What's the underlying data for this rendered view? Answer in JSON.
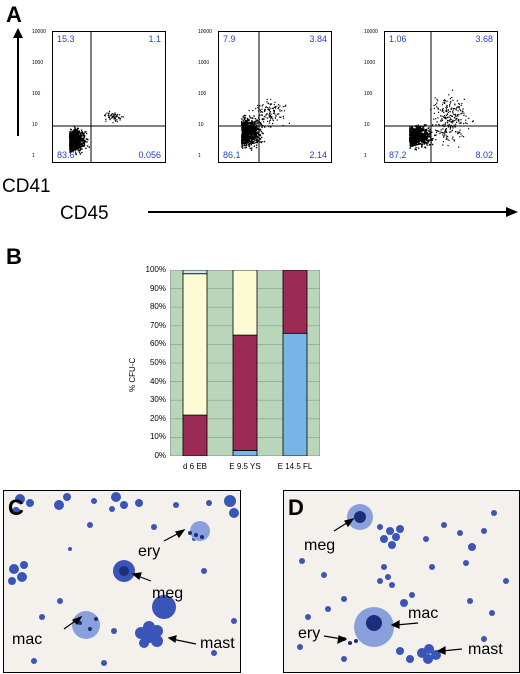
{
  "panels": {
    "a_letter": "A",
    "b_letter": "B",
    "c_letter": "C",
    "d_letter": "D"
  },
  "flow": {
    "y_axis_label": "CD41",
    "x_axis_label": "CD45",
    "y_ticks": [
      "10000",
      "1000",
      "100",
      "10",
      "1"
    ],
    "plots": [
      {
        "ul": "15.3",
        "ur": "1.1",
        "ll": "83.6",
        "lr": "0.056"
      },
      {
        "ul": "7.9",
        "ur": "3.84",
        "ll": "86.1",
        "lr": "2.14"
      },
      {
        "ul": "1.06",
        "ur": "3.68",
        "ll": "87.2",
        "lr": "8.02"
      }
    ]
  },
  "chart_data": {
    "type": "bar",
    "stacked": true,
    "ylabel": "% CFU-C",
    "ylim": [
      0,
      100
    ],
    "y_ticks": [
      "100%",
      "90%",
      "80%",
      "70%",
      "60%",
      "50%",
      "40%",
      "30%",
      "20%",
      "10%",
      "0%"
    ],
    "categories": [
      "d 6 EB",
      "E 9.5 YS",
      "E 14.5 FL"
    ],
    "series": [
      {
        "color": "#78b4e6",
        "values": [
          0,
          3,
          66
        ]
      },
      {
        "color": "#9b2a55",
        "values": [
          22,
          62,
          34
        ]
      },
      {
        "color": "#fdfbd3",
        "values": [
          76,
          35,
          0
        ]
      },
      {
        "color": "#cde8f3",
        "values": [
          2,
          0,
          0
        ]
      }
    ],
    "grid": true,
    "background": "#b9d6ba"
  },
  "micro_c": {
    "labels": [
      "ery",
      "meg",
      "mac",
      "mast"
    ]
  },
  "micro_d": {
    "labels": [
      "meg",
      "mac",
      "ery",
      "mast"
    ]
  },
  "colors": {
    "quadrant_text": "#2b3fbf",
    "cell_stain": "#3a55b8"
  }
}
